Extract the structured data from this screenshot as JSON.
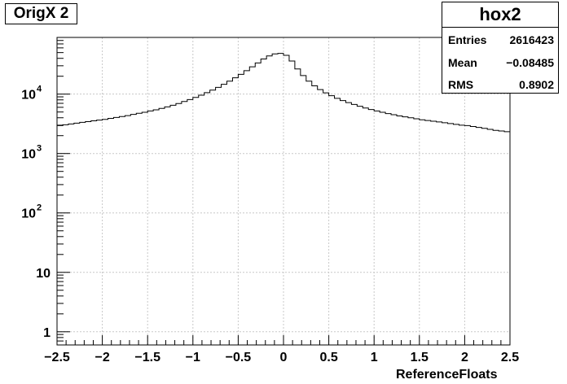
{
  "title_box": "OrigX 2",
  "stats": {
    "name": "hox2",
    "rows": [
      {
        "label": "Entries",
        "value": "2616423"
      },
      {
        "label": "Mean",
        "value": "−0.08485"
      },
      {
        "label": "RMS",
        "value": "0.8902"
      }
    ]
  },
  "chart_data": {
    "type": "line",
    "xlabel": "ReferenceFloats",
    "ylabel": "",
    "xlim": [
      -2.5,
      2.5
    ],
    "ylim": [
      0.6,
      90000
    ],
    "y_log_scale": true,
    "grid": true,
    "x_ticks": [
      "−2.5",
      "−2",
      "−1.5",
      "−1",
      "−0.5",
      "0",
      "0.5",
      "1",
      "1.5",
      "2",
      "2.5"
    ],
    "x_tick_values": [
      -2.5,
      -2,
      -1.5,
      -1,
      -0.5,
      0,
      0.5,
      1,
      1.5,
      2,
      2.5
    ],
    "y_ticks": [
      {
        "value": 1,
        "label": "1"
      },
      {
        "value": 10,
        "label": "10"
      },
      {
        "value": 100,
        "label": "10^2"
      },
      {
        "value": 1000,
        "label": "10^3"
      },
      {
        "value": 10000,
        "label": "10^4"
      }
    ],
    "bins": {
      "x_low": -2.5,
      "x_high": 2.5,
      "counts": [
        2950,
        3050,
        3150,
        3250,
        3350,
        3450,
        3550,
        3650,
        3750,
        3900,
        4050,
        4200,
        4350,
        4550,
        4750,
        4950,
        5200,
        5450,
        5750,
        6100,
        6500,
        6950,
        7500,
        8100,
        8800,
        9600,
        10600,
        11700,
        13000,
        14600,
        16500,
        18800,
        21500,
        24800,
        28800,
        33500,
        39000,
        44000,
        47500,
        48500,
        45000,
        36000,
        26500,
        20500,
        16500,
        13800,
        11900,
        10500,
        9400,
        8500,
        7800,
        7200,
        6700,
        6250,
        5850,
        5500,
        5200,
        4950,
        4700,
        4500,
        4300,
        4150,
        4000,
        3850,
        3700,
        3600,
        3500,
        3400,
        3300,
        3200,
        3100,
        3000,
        2950,
        2850,
        2750,
        2650,
        2550,
        2450,
        2400,
        2330
      ]
    },
    "colors": {
      "line": "#000000",
      "grid": "#c8c8c8",
      "axis": "#000000"
    }
  }
}
